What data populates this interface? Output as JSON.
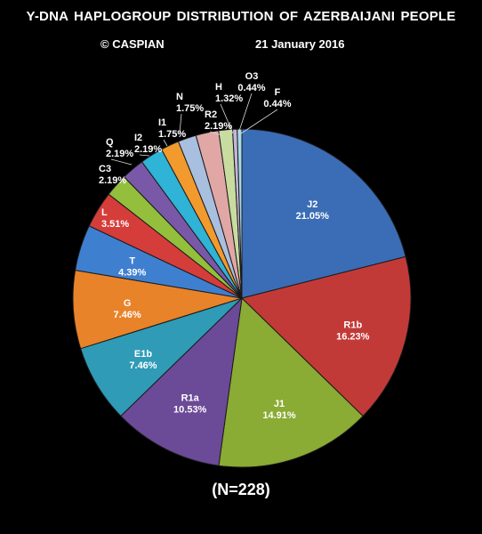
{
  "title": "Y-DNA HAPLOGROUP DISTRIBUTION OF AZERBAIJANI PEOPLE",
  "credit": "© CASPIAN",
  "date": "21 January 2016",
  "footnote": "(N=228)",
  "chart_data": {
    "type": "pie",
    "slices": [
      {
        "label": "J2",
        "value": 21.05,
        "display": "21.05%",
        "color": "#3a6db5"
      },
      {
        "label": "R1b",
        "value": 16.23,
        "display": "16.23%",
        "color": "#c23a37"
      },
      {
        "label": "J1",
        "value": 14.91,
        "display": "14.91%",
        "color": "#8aab34"
      },
      {
        "label": "R1a",
        "value": 10.53,
        "display": "10.53%",
        "color": "#6b4a97"
      },
      {
        "label": "E1b",
        "value": 7.46,
        "display": "7.46%",
        "color": "#2f9bb6"
      },
      {
        "label": "G",
        "value": 7.46,
        "display": "7.46%",
        "color": "#e8832a"
      },
      {
        "label": "T",
        "value": 4.39,
        "display": "4.39%",
        "color": "#3f7fd0"
      },
      {
        "label": "L",
        "value": 3.51,
        "display": "3.51%",
        "color": "#d43d3a"
      },
      {
        "label": "C3",
        "value": 2.19,
        "display": "2.19%",
        "color": "#93bf3d"
      },
      {
        "label": "Q",
        "value": 2.19,
        "display": "2.19%",
        "color": "#7a58a8"
      },
      {
        "label": "I2",
        "value": 2.19,
        "display": "2.19%",
        "color": "#2fb3d6"
      },
      {
        "label": "I1",
        "value": 1.75,
        "display": "1.75%",
        "color": "#f29a2e"
      },
      {
        "label": "N",
        "value": 1.75,
        "display": "1.75%",
        "color": "#a9bfe0"
      },
      {
        "label": "R2",
        "value": 2.19,
        "display": "2.19%",
        "color": "#e0a7a5"
      },
      {
        "label": "H",
        "value": 1.32,
        "display": "1.32%",
        "color": "#c9dca0"
      },
      {
        "label": "O3",
        "value": 0.44,
        "display": "0.44%",
        "color": "#c3b6d8"
      },
      {
        "label": "F",
        "value": 0.44,
        "display": "0.44%",
        "color": "#a7dbe9"
      }
    ]
  }
}
